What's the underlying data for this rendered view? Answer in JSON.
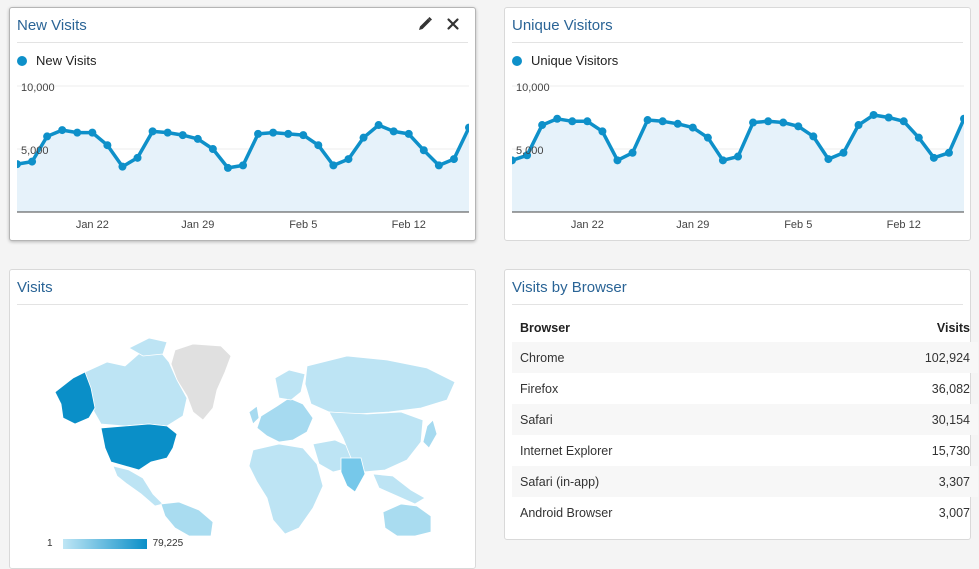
{
  "widgets": {
    "new_visits": {
      "title": "New Visits",
      "legend": "New Visits",
      "edit_icon": "pencil-icon",
      "close_icon": "close-icon"
    },
    "unique_visitors": {
      "title": "Unique Visitors",
      "legend": "Unique Visitors"
    },
    "visits_map": {
      "title": "Visits",
      "scale_min": "1",
      "scale_max": "79,225"
    },
    "browser_table": {
      "title": "Visits by Browser",
      "columns": [
        "Browser",
        "Visits"
      ],
      "rows": [
        {
          "browser": "Chrome",
          "visits": "102,924"
        },
        {
          "browser": "Firefox",
          "visits": "36,082"
        },
        {
          "browser": "Safari",
          "visits": "30,154"
        },
        {
          "browser": "Internet Explorer",
          "visits": "15,730"
        },
        {
          "browser": "Safari (in-app)",
          "visits": "3,307"
        },
        {
          "browser": "Android Browser",
          "visits": "3,007"
        }
      ]
    }
  },
  "colors": {
    "series": "#0e90c9",
    "area": "#e6f2fa",
    "title": "#2a6496",
    "map_high": "#0a8fc8",
    "map_low": "#bfe6f5"
  },
  "chart_data": [
    {
      "type": "area",
      "series": [
        {
          "name": "New Visits",
          "values": [
            3800,
            4000,
            6000,
            6500,
            6300,
            6300,
            5300,
            3600,
            4300,
            6400,
            6300,
            6100,
            5800,
            5000,
            3500,
            3700,
            6200,
            6300,
            6200,
            6100,
            5300,
            3700,
            4200,
            5900,
            6900,
            6400,
            6200,
            4900,
            3700,
            4200,
            6700
          ]
        }
      ],
      "x": [
        "Jan 17",
        "Jan 18",
        "Jan 19",
        "Jan 20",
        "Jan 21",
        "Jan 22",
        "Jan 23",
        "Jan 24",
        "Jan 25",
        "Jan 26",
        "Jan 27",
        "Jan 28",
        "Jan 29",
        "Jan 30",
        "Jan 31",
        "Feb 1",
        "Feb 2",
        "Feb 3",
        "Feb 4",
        "Feb 5",
        "Feb 6",
        "Feb 7",
        "Feb 8",
        "Feb 9",
        "Feb 10",
        "Feb 11",
        "Feb 12",
        "Feb 13",
        "Feb 14",
        "Feb 15",
        "Feb 16"
      ],
      "x_ticks": [
        "Jan 22",
        "Jan 29",
        "Feb 5",
        "Feb 12"
      ],
      "y_ticks": [
        "10,000",
        "5,000"
      ],
      "ylim": [
        0,
        10000
      ]
    },
    {
      "type": "area",
      "series": [
        {
          "name": "Unique Visitors",
          "values": [
            4100,
            4500,
            6900,
            7400,
            7200,
            7200,
            6400,
            4100,
            4700,
            7300,
            7200,
            7000,
            6700,
            5900,
            4100,
            4400,
            7100,
            7200,
            7100,
            6800,
            6000,
            4200,
            4700,
            6900,
            7700,
            7500,
            7200,
            5900,
            4300,
            4700,
            7400
          ]
        }
      ],
      "x": [
        "Jan 17",
        "Jan 18",
        "Jan 19",
        "Jan 20",
        "Jan 21",
        "Jan 22",
        "Jan 23",
        "Jan 24",
        "Jan 25",
        "Jan 26",
        "Jan 27",
        "Jan 28",
        "Jan 29",
        "Jan 30",
        "Jan 31",
        "Feb 1",
        "Feb 2",
        "Feb 3",
        "Feb 4",
        "Feb 5",
        "Feb 6",
        "Feb 7",
        "Feb 8",
        "Feb 9",
        "Feb 10",
        "Feb 11",
        "Feb 12",
        "Feb 13",
        "Feb 14",
        "Feb 15",
        "Feb 16"
      ],
      "x_ticks": [
        "Jan 22",
        "Jan 29",
        "Feb 5",
        "Feb 12"
      ],
      "y_ticks": [
        "10,000",
        "5,000"
      ],
      "ylim": [
        0,
        10000
      ]
    }
  ]
}
